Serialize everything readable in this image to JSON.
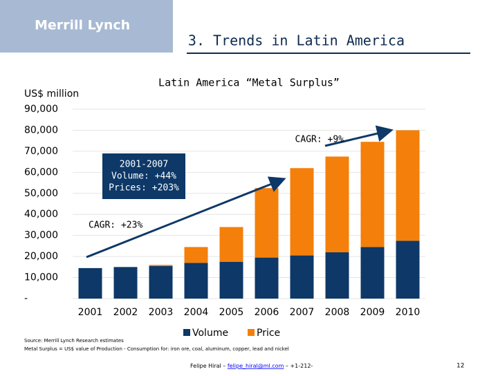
{
  "header": {
    "logo": "Merrill Lynch",
    "title": "3. Trends in Latin America"
  },
  "chart_data": {
    "type": "stacked-bar",
    "title": "Latin America “Metal Surplus”",
    "y_label": "US$ million",
    "categories": [
      "2001",
      "2002",
      "2003",
      "2004",
      "2005",
      "2006",
      "2007",
      "2008",
      "2009",
      "2010"
    ],
    "series": [
      {
        "name": "Volume",
        "color": "#0d3867",
        "values": [
          14500,
          15000,
          15500,
          17000,
          17500,
          19500,
          20500,
          22000,
          24500,
          27500
        ]
      },
      {
        "name": "Price",
        "color": "#f47f0a",
        "values": [
          0,
          0,
          500,
          7500,
          16500,
          33000,
          41500,
          45500,
          50000,
          52500
        ]
      }
    ],
    "ylim": [
      0,
      90000
    ],
    "yticks": [
      {
        "value": 0,
        "label": "-"
      },
      {
        "value": 10000,
        "label": "10,000"
      },
      {
        "value": 20000,
        "label": "20,000"
      },
      {
        "value": 30000,
        "label": "30,000"
      },
      {
        "value": 40000,
        "label": "40,000"
      },
      {
        "value": 50000,
        "label": "50,000"
      },
      {
        "value": 60000,
        "label": "60,000"
      },
      {
        "value": 70000,
        "label": "70,000"
      },
      {
        "value": 80000,
        "label": "80,000"
      },
      {
        "value": 90000,
        "label": "90,000"
      }
    ],
    "grid": true,
    "annotations": {
      "cagr_price": "CAGR: +9%",
      "box": [
        "2001-2007",
        "Volume: +44%",
        "Prices: +203%"
      ],
      "cagr_volume": "CAGR: +23%"
    }
  },
  "notes": [
    "Source: Merrill Lynch Research estimates",
    "Metal Surplus = US$ value of Production - Consumption for: iron ore, coal, aluminum, copper, lead and nickel"
  ],
  "footer": {
    "name": "Felipe Hiral –",
    "email": "felipe_hiral@ml.com",
    "phone": "– +1-212-",
    "page": "12"
  }
}
